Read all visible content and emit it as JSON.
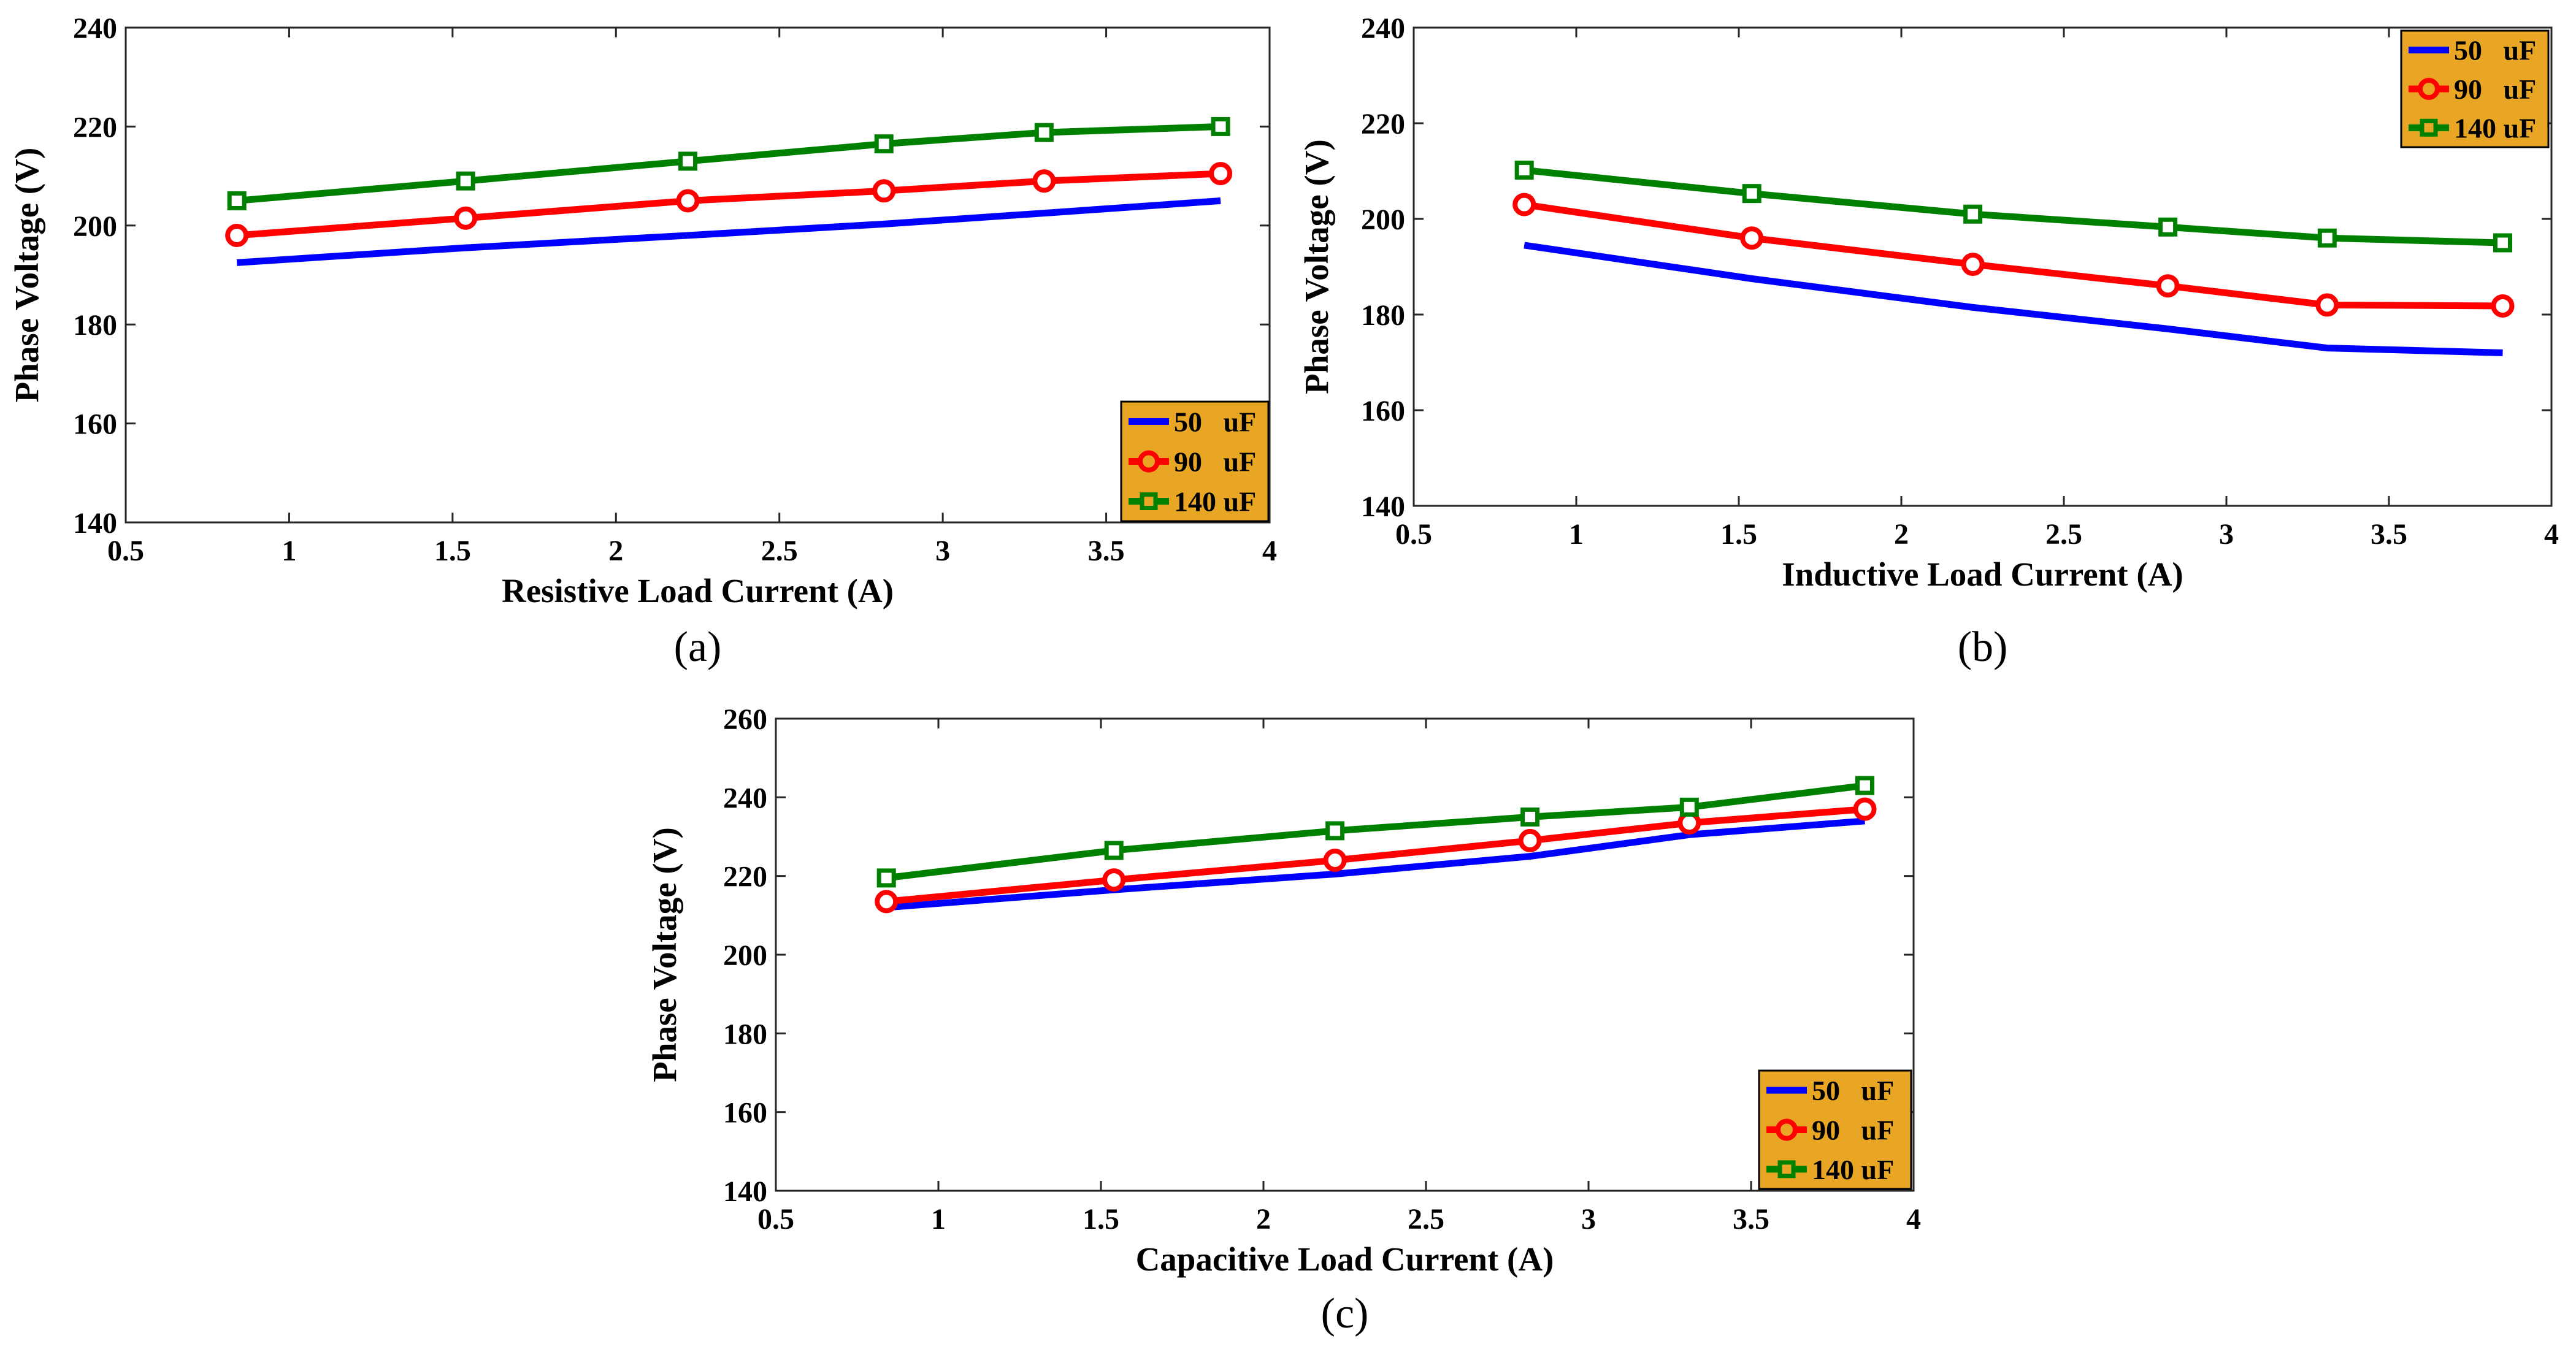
{
  "legend_bg_color": "#E8A624",
  "chart_data": [
    {
      "type": "line",
      "panel": "(a)",
      "xlabel": "Resistive Load Current (A)",
      "ylabel": "Phase Voltage (V)",
      "xlim": [
        0.5,
        4
      ],
      "ylim": [
        140,
        240
      ],
      "xticks": [
        0.5,
        1,
        1.5,
        2,
        2.5,
        3,
        3.5,
        4
      ],
      "xtick_labels": [
        "0.5",
        "1",
        "1.5",
        "2",
        "2.5",
        "3",
        "3.5",
        "4"
      ],
      "yticks": [
        140,
        160,
        180,
        200,
        220,
        240
      ],
      "ytick_labels": [
        "140",
        "160",
        "180",
        "200",
        "220",
        "240"
      ],
      "legend_position": "bottom-right",
      "series": [
        {
          "name": "50   uF",
          "color": "#0000FF",
          "marker": "none",
          "x": [
            0.84,
            1.54,
            2.22,
            2.82,
            3.31,
            3.85
          ],
          "y": [
            192.5,
            195.5,
            198.0,
            200.3,
            202.5,
            205.0
          ]
        },
        {
          "name": "90   uF",
          "color": "#FF0000",
          "marker": "circle",
          "x": [
            0.84,
            1.54,
            2.22,
            2.82,
            3.31,
            3.85
          ],
          "y": [
            198.0,
            201.5,
            205.0,
            207.0,
            209.0,
            210.5
          ]
        },
        {
          "name": "140 uF",
          "color": "#008000",
          "marker": "square",
          "x": [
            0.84,
            1.54,
            2.22,
            2.82,
            3.31,
            3.85
          ],
          "y": [
            205.0,
            209.0,
            213.0,
            216.5,
            218.8,
            220.0
          ]
        }
      ]
    },
    {
      "type": "line",
      "panel": "(b)",
      "xlabel": "Inductive Load Current (A)",
      "ylabel": "Phase Voltage (V)",
      "xlim": [
        0.5,
        4
      ],
      "ylim": [
        140,
        240
      ],
      "xticks": [
        0.5,
        1,
        1.5,
        2,
        2.5,
        3,
        3.5,
        4
      ],
      "xtick_labels": [
        "0.5",
        "1",
        "1.5",
        "2",
        "2.5",
        "3",
        "3.5",
        "4"
      ],
      "yticks": [
        140,
        160,
        180,
        200,
        220,
        240
      ],
      "ytick_labels": [
        "140",
        "160",
        "180",
        "200",
        "220",
        "240"
      ],
      "legend_position": "top-right",
      "series": [
        {
          "name": "50   uF",
          "color": "#0000FF",
          "marker": "none",
          "x": [
            0.84,
            1.54,
            2.22,
            2.82,
            3.31,
            3.85
          ],
          "y": [
            194.5,
            187.5,
            181.5,
            177.0,
            173.0,
            172.0
          ]
        },
        {
          "name": "90   uF",
          "color": "#FF0000",
          "marker": "circle",
          "x": [
            0.84,
            1.54,
            2.22,
            2.82,
            3.31,
            3.85
          ],
          "y": [
            203.0,
            196.0,
            190.5,
            186.0,
            182.0,
            181.8
          ]
        },
        {
          "name": "140 uF",
          "color": "#008000",
          "marker": "square",
          "x": [
            0.84,
            1.54,
            2.22,
            2.82,
            3.31,
            3.85
          ],
          "y": [
            210.2,
            205.3,
            201.0,
            198.3,
            196.0,
            195.0
          ]
        }
      ]
    },
    {
      "type": "line",
      "panel": "(c)",
      "xlabel": "Capacitive Load Current (A)",
      "ylabel": "Phase Voltage (V)",
      "xlim": [
        0.5,
        4
      ],
      "ylim": [
        140,
        260
      ],
      "xticks": [
        0.5,
        1,
        1.5,
        2,
        2.5,
        3,
        3.5,
        4
      ],
      "xtick_labels": [
        "0.5",
        "1",
        "1.5",
        "2",
        "2.5",
        "3",
        "3.5",
        "4"
      ],
      "yticks": [
        140,
        160,
        180,
        200,
        220,
        240,
        260
      ],
      "ytick_labels": [
        "140",
        "160",
        "180",
        "200",
        "220",
        "240",
        "260"
      ],
      "legend_position": "bottom-right",
      "series": [
        {
          "name": "50   uF",
          "color": "#0000FF",
          "marker": "none",
          "x": [
            0.84,
            1.54,
            2.22,
            2.82,
            3.31,
            3.85
          ],
          "y": [
            212.0,
            216.5,
            220.5,
            225.0,
            230.5,
            234.0
          ]
        },
        {
          "name": "90   uF",
          "color": "#FF0000",
          "marker": "circle",
          "x": [
            0.84,
            1.54,
            2.22,
            2.82,
            3.31,
            3.85
          ],
          "y": [
            213.5,
            219.0,
            224.0,
            229.0,
            233.5,
            237.0
          ]
        },
        {
          "name": "140 uF",
          "color": "#008000",
          "marker": "square",
          "x": [
            0.84,
            1.54,
            2.22,
            2.82,
            3.31,
            3.85
          ],
          "y": [
            219.5,
            226.5,
            231.5,
            235.0,
            237.5,
            243.0
          ]
        }
      ]
    }
  ]
}
